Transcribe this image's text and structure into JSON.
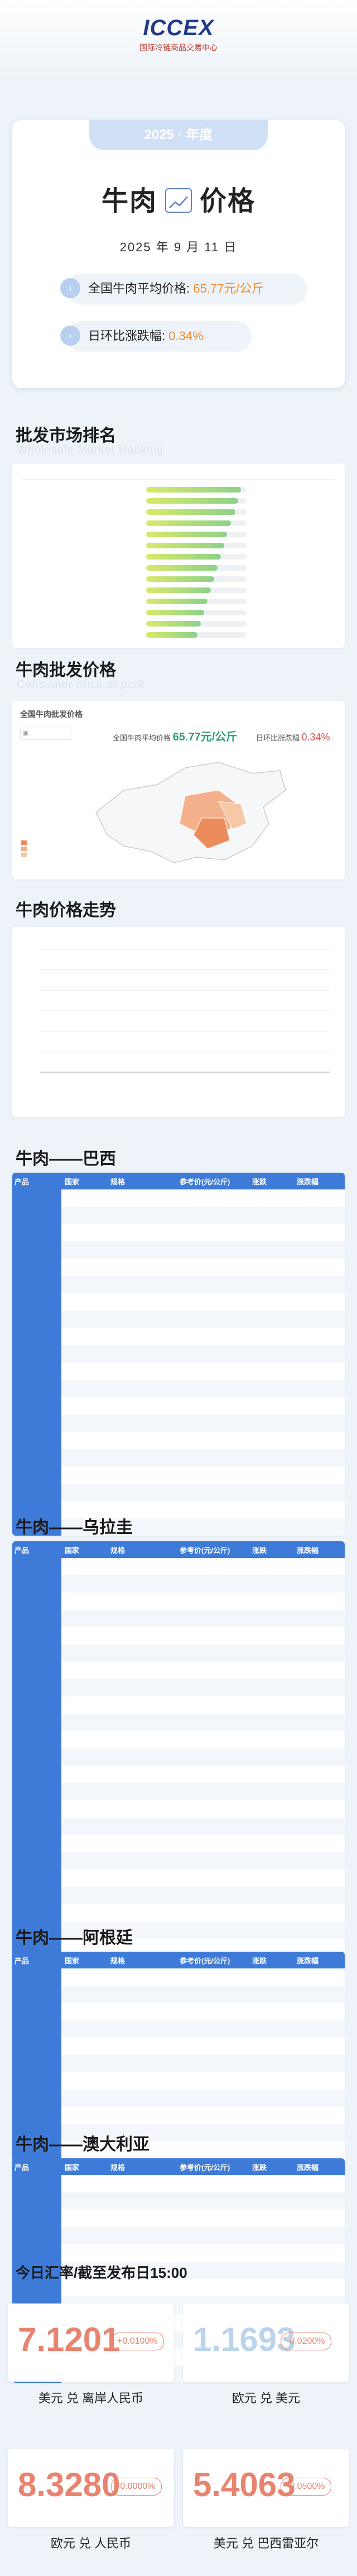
{
  "header": {
    "logo_text": "ICCEX",
    "logo_sub": "国际冷链商品交易中心"
  },
  "summary": {
    "year_tag": "2025 · 年度",
    "title_left": "牛肉",
    "title_right": "价格",
    "chart_icon": "chart-line-icon",
    "date": "2025 年 9 月 11 日",
    "avg_label": "全国牛肉平均价格:",
    "avg_value": "65.77元/公斤",
    "chg_label": "日环比涨跌幅:",
    "chg_value": "0.34%"
  },
  "wholesale": {
    "title": "批发市场排名",
    "sub": "Wholesale Market Ranking"
  },
  "consumer": {
    "title": "牛肉批发价格",
    "sub": "Consumer price of pork",
    "panel_title": "全国牛肉批发价格",
    "avg_label": "全国牛肉平均价格",
    "avg_value": "65.77元/公斤",
    "chg_label": "日环比涨跌幅",
    "chg_value": "0.34%"
  },
  "trend": {
    "title": "牛肉价格走势"
  },
  "country_sections": [
    {
      "title": "牛肉——巴西",
      "rows": 20
    },
    {
      "title": "牛肉——乌拉圭",
      "rows": 24
    },
    {
      "title": "牛肉——阿根廷",
      "rows": 12
    },
    {
      "title": "牛肉——澳大利亚",
      "rows": 12
    }
  ],
  "table_headers": {
    "c1": "产品",
    "c2": "国家",
    "c3": "规格",
    "c4": "参考价(元/公斤)",
    "c5": "涨跌",
    "c6": "涨跌幅"
  },
  "exchange": {
    "title": "今日汇率/截至发布日15:00",
    "rates": [
      {
        "value": "7.1201",
        "change": "+0.0100%",
        "label": "美元 兑 离岸人民币"
      },
      {
        "value": "1.1693",
        "change": "-0.0200%",
        "label": "欧元 兑 美元"
      },
      {
        "value": "8.3280",
        "change": "-0.0000%",
        "label": "欧元 兑 人民币"
      },
      {
        "value": "5.4063",
        "change": "-0.0500%",
        "label": "美元 兑 巴西雷亚尔"
      }
    ]
  },
  "chart_data": {
    "type": "line",
    "title": "",
    "x": [],
    "series": []
  },
  "colors": {
    "accent": "#3e7bd8",
    "highlight": "#f08a2c",
    "rate_red": "#e8836f",
    "rate_light": "#bcd3ec"
  }
}
